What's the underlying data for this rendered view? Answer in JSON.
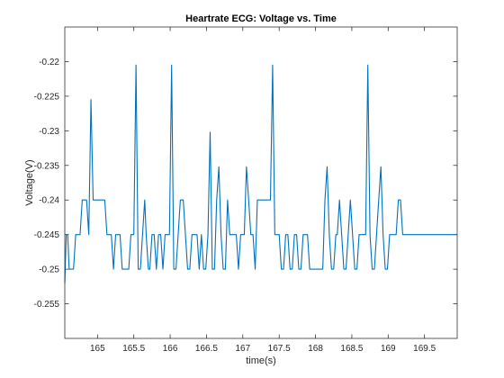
{
  "chart_data": {
    "type": "line",
    "title": "Heartrate ECG: Voltage vs. Time",
    "xlabel": "time(s)",
    "ylabel": "Voltage(V)",
    "xlim": [
      164.55,
      169.95
    ],
    "ylim": [
      -0.26,
      -0.215
    ],
    "xticks": [
      165,
      165.5,
      166,
      166.5,
      167,
      167.5,
      168,
      168.5,
      169,
      169.5
    ],
    "xtick_labels": [
      "165",
      "165.5",
      "166",
      "166.5",
      "167",
      "167.5",
      "168",
      "168.5",
      "169",
      "169.5"
    ],
    "yticks": [
      -0.255,
      -0.25,
      -0.245,
      -0.24,
      -0.235,
      -0.23,
      -0.225,
      -0.22
    ],
    "ytick_labels": [
      "-0.255",
      "-0.25",
      "-0.245",
      "-0.24",
      "-0.235",
      "-0.23",
      "-0.225",
      "-0.22"
    ],
    "grid": false,
    "legend": "none",
    "line_color": "#0072BD",
    "series": [
      {
        "x": [
          164.55,
          164.57,
          164.59,
          164.61,
          164.64,
          164.67,
          164.7,
          164.73,
          164.76,
          164.79,
          164.82,
          164.85,
          164.88,
          164.91,
          164.94,
          164.97,
          165.0,
          165.02,
          165.05,
          165.08,
          165.1,
          165.13,
          165.16,
          165.19,
          165.22,
          165.25,
          165.28,
          165.31,
          165.34,
          165.37,
          165.4,
          165.43,
          165.46,
          165.5,
          165.53,
          165.56,
          165.59,
          165.62,
          165.65,
          165.67,
          165.7,
          165.72,
          165.75,
          165.78,
          165.81,
          165.84,
          165.87,
          165.9,
          165.93,
          165.96,
          165.99,
          166.02,
          166.05,
          166.08,
          166.11,
          166.14,
          166.18,
          166.21,
          166.24,
          166.27,
          166.3,
          166.32,
          166.35,
          166.37,
          166.4,
          166.43,
          166.46,
          166.49,
          166.52,
          166.55,
          166.58,
          166.61,
          166.64,
          166.67,
          166.7,
          166.73,
          166.76,
          166.79,
          166.82,
          166.85,
          166.88,
          166.91,
          166.94,
          166.97,
          167.0,
          167.02,
          167.05,
          167.08,
          167.11,
          167.14,
          167.17,
          167.2,
          167.23,
          167.26,
          167.29,
          167.32,
          167.35,
          167.38,
          167.41,
          167.44,
          167.47,
          167.5,
          167.53,
          167.56,
          167.59,
          167.62,
          167.65,
          167.68,
          167.71,
          167.74,
          167.77,
          167.8,
          167.83,
          167.86,
          167.89,
          167.92,
          167.95,
          167.98,
          168.01,
          168.04,
          168.07,
          168.1,
          168.13,
          168.16,
          168.19,
          168.22,
          168.25,
          168.28,
          168.3,
          168.33,
          168.36,
          168.39,
          168.42,
          168.45,
          168.48,
          168.51,
          168.54,
          168.57,
          168.6,
          168.63,
          168.66,
          168.69,
          168.72,
          168.75,
          168.78,
          168.81,
          168.84,
          168.87,
          168.9,
          168.93,
          168.96,
          168.99,
          169.02,
          169.05,
          169.08,
          169.11,
          169.14,
          169.17,
          169.2,
          169.23,
          169.26,
          169.29,
          169.32,
          169.35,
          169.38,
          169.41,
          169.44,
          169.47,
          169.5,
          169.53,
          169.56,
          169.59,
          169.62,
          169.65,
          169.68,
          169.71,
          169.74,
          169.77,
          169.8,
          169.83,
          169.86,
          169.89,
          169.92,
          169.95
        ],
        "y": [
          -0.252,
          -0.245,
          -0.245,
          -0.25,
          -0.25,
          -0.25,
          -0.245,
          -0.245,
          -0.245,
          -0.24,
          -0.24,
          -0.24,
          -0.245,
          -0.2255,
          -0.24,
          -0.24,
          -0.24,
          -0.24,
          -0.24,
          -0.24,
          -0.24,
          -0.245,
          -0.245,
          -0.245,
          -0.25,
          -0.245,
          -0.245,
          -0.245,
          -0.25,
          -0.25,
          -0.25,
          -0.25,
          -0.245,
          -0.245,
          -0.2205,
          -0.25,
          -0.25,
          -0.245,
          -0.24,
          -0.245,
          -0.25,
          -0.25,
          -0.245,
          -0.245,
          -0.25,
          -0.245,
          -0.245,
          -0.25,
          -0.245,
          -0.245,
          -0.245,
          -0.2205,
          -0.25,
          -0.25,
          -0.245,
          -0.24,
          -0.24,
          -0.245,
          -0.25,
          -0.25,
          -0.245,
          -0.245,
          -0.245,
          -0.245,
          -0.25,
          -0.245,
          -0.25,
          -0.25,
          -0.245,
          -0.2302,
          -0.25,
          -0.25,
          -0.24,
          -0.2352,
          -0.245,
          -0.25,
          -0.25,
          -0.24,
          -0.245,
          -0.245,
          -0.245,
          -0.245,
          -0.25,
          -0.245,
          -0.245,
          -0.245,
          -0.2352,
          -0.24,
          -0.245,
          -0.245,
          -0.25,
          -0.24,
          -0.24,
          -0.24,
          -0.24,
          -0.24,
          -0.24,
          -0.24,
          -0.2205,
          -0.245,
          -0.245,
          -0.245,
          -0.25,
          -0.25,
          -0.245,
          -0.245,
          -0.25,
          -0.25,
          -0.245,
          -0.245,
          -0.25,
          -0.25,
          -0.245,
          -0.245,
          -0.245,
          -0.25,
          -0.25,
          -0.25,
          -0.25,
          -0.25,
          -0.25,
          -0.25,
          -0.24,
          -0.2352,
          -0.245,
          -0.25,
          -0.25,
          -0.245,
          -0.245,
          -0.24,
          -0.245,
          -0.25,
          -0.25,
          -0.245,
          -0.24,
          -0.245,
          -0.25,
          -0.25,
          -0.245,
          -0.245,
          -0.245,
          -0.245,
          -0.2205,
          -0.245,
          -0.25,
          -0.25,
          -0.245,
          -0.24,
          -0.2352,
          -0.245,
          -0.25,
          -0.25,
          -0.245,
          -0.245,
          -0.245,
          -0.245,
          -0.24,
          -0.24,
          -0.245,
          -0.245,
          -0.245,
          -0.245,
          -0.245,
          -0.245,
          -0.245,
          -0.245,
          -0.245,
          -0.245,
          -0.245,
          -0.245,
          -0.245,
          -0.245,
          -0.245,
          -0.245,
          -0.245,
          -0.245,
          -0.245,
          -0.245,
          -0.245,
          -0.245,
          -0.245,
          -0.245,
          -0.245,
          -0.245
        ]
      }
    ]
  }
}
